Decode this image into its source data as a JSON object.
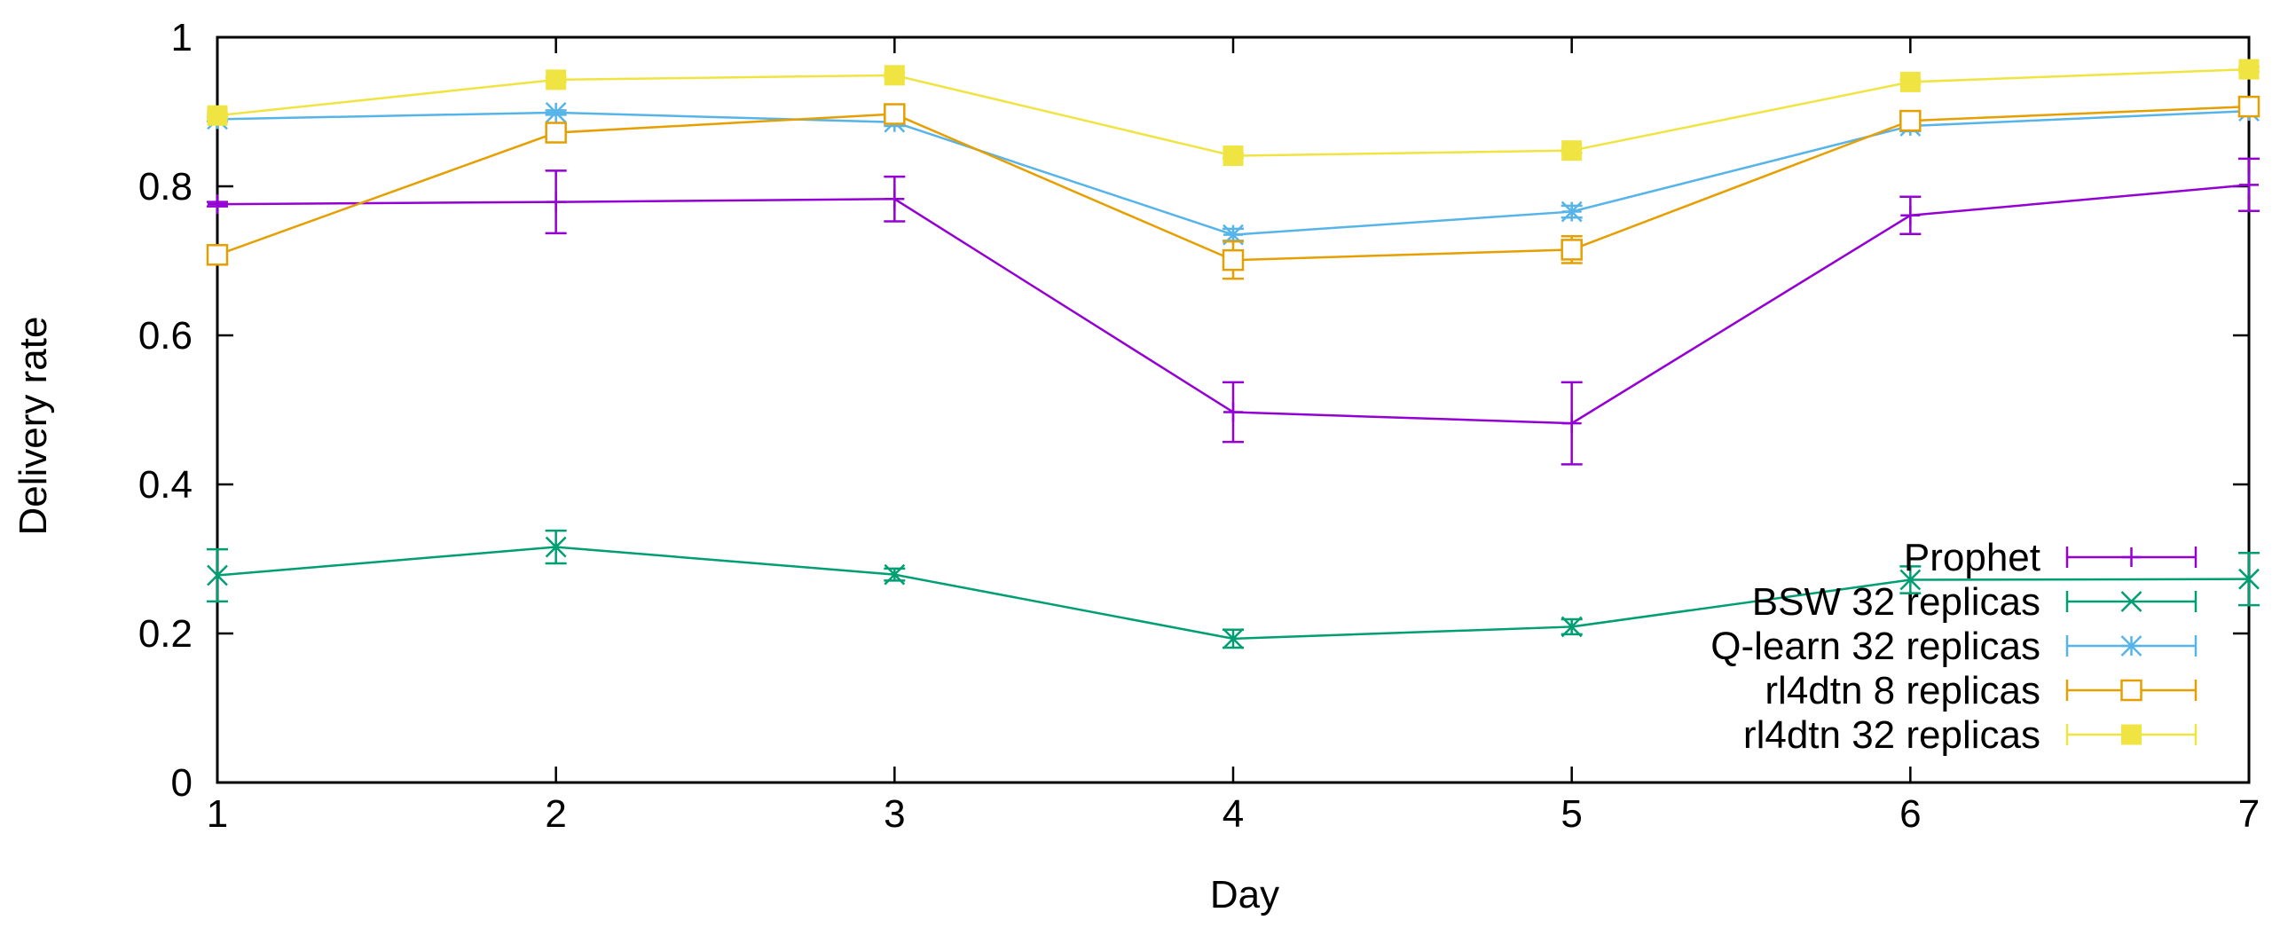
{
  "chart_data": {
    "type": "line",
    "title": "",
    "xlabel": "Day",
    "ylabel": "Delivery rate",
    "xlim": [
      1,
      7
    ],
    "ylim": [
      0,
      1
    ],
    "x": [
      1,
      2,
      3,
      4,
      5,
      6,
      7
    ],
    "xticks": [
      1,
      2,
      3,
      4,
      5,
      6,
      7
    ],
    "yticks": [
      0,
      0.2,
      0.4,
      0.6,
      0.8,
      1
    ],
    "ytick_labels": [
      "0",
      "0.2",
      "0.4",
      "0.6",
      "0.8",
      "1"
    ],
    "grid": false,
    "legend_position": "bottom-right",
    "series": [
      {
        "name": "Prophet",
        "color": "#9400d3",
        "marker": "plus",
        "values": [
          0.776,
          0.779,
          0.783,
          0.497,
          0.482,
          0.761,
          0.802
        ],
        "errors": [
          0.003,
          0.042,
          0.03,
          0.04,
          0.055,
          0.025,
          0.035
        ]
      },
      {
        "name": "BSW 32 replicas",
        "color": "#009e73",
        "marker": "x",
        "values": [
          0.278,
          0.316,
          0.279,
          0.193,
          0.209,
          0.272,
          0.273
        ],
        "errors": [
          0.035,
          0.022,
          0.008,
          0.012,
          0.01,
          0.018,
          0.035
        ]
      },
      {
        "name": "Q-learn 32 replicas",
        "color": "#56b4e9",
        "marker": "star",
        "values": [
          0.89,
          0.899,
          0.886,
          0.735,
          0.766,
          0.881,
          0.901
        ],
        "errors": [
          0.003,
          0.003,
          0.005,
          0.008,
          0.008,
          0.007,
          0.005
        ]
      },
      {
        "name": "rl4dtn 8 replicas",
        "color": "#e69f00",
        "marker": "square",
        "values": [
          0.708,
          0.872,
          0.897,
          0.701,
          0.715,
          0.888,
          0.907
        ],
        "errors": [
          0.005,
          0.005,
          0.005,
          0.025,
          0.018,
          0.006,
          0.005
        ]
      },
      {
        "name": "rl4dtn 32 replicas",
        "color": "#f0e442",
        "marker": "filled-square",
        "values": [
          0.895,
          0.943,
          0.949,
          0.841,
          0.848,
          0.94,
          0.957
        ],
        "errors": [
          0.003,
          0.003,
          0.003,
          0.003,
          0.003,
          0.003,
          0.003
        ]
      }
    ]
  }
}
